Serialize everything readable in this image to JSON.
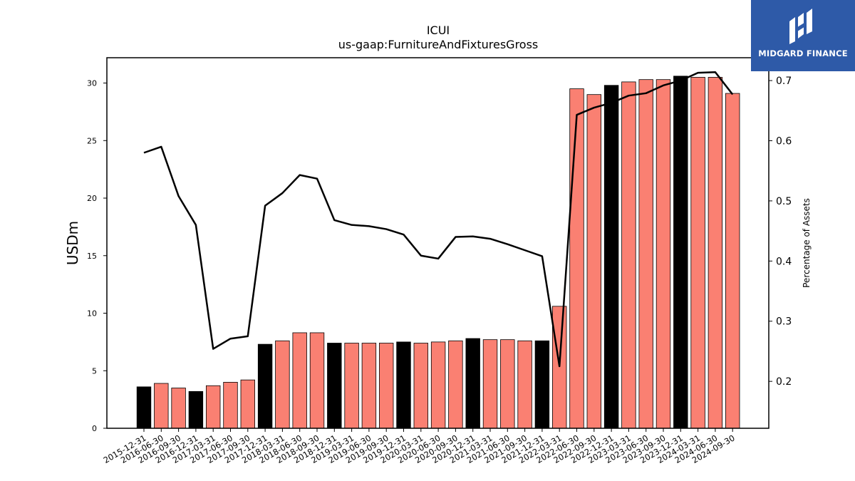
{
  "chart_data": {
    "type": "bar",
    "title": "ICUI",
    "subtitle": "us-gaap:FurnitureAndFixturesGross",
    "ylabel": "USDm",
    "y2label": "Percentage of Assets",
    "ylim": [
      0,
      32.2
    ],
    "y2lim": [
      0.122,
      0.738
    ],
    "yticks": [
      0,
      5,
      10,
      15,
      20,
      25,
      30
    ],
    "y2ticks": [
      0.2,
      0.3,
      0.4,
      0.5,
      0.6,
      0.7
    ],
    "categories": [
      "2015-12-31",
      "2016-06-30",
      "2016-09-30",
      "2016-12-31",
      "2017-03-31",
      "2017-06-30",
      "2017-09-30",
      "2017-12-31",
      "2018-03-31",
      "2018-06-30",
      "2018-09-30",
      "2018-12-31",
      "2019-03-31",
      "2019-06-30",
      "2019-09-30",
      "2019-12-31",
      "2020-03-31",
      "2020-06-30",
      "2020-09-30",
      "2020-12-31",
      "2021-03-31",
      "2021-06-30",
      "2021-09-30",
      "2021-12-31",
      "2022-03-31",
      "2022-06-30",
      "2022-09-30",
      "2022-12-31",
      "2023-03-31",
      "2023-06-30",
      "2023-09-30",
      "2023-12-31",
      "2024-03-31",
      "2024-06-30",
      "2024-09-30"
    ],
    "series": [
      {
        "kind": "bar",
        "values": [
          3.6,
          3.9,
          3.5,
          3.2,
          3.7,
          4.0,
          4.2,
          7.3,
          7.6,
          8.3,
          8.3,
          7.4,
          7.4,
          7.4,
          7.4,
          7.5,
          7.4,
          7.5,
          7.6,
          7.8,
          7.7,
          7.7,
          7.6,
          7.6,
          10.6,
          29.5,
          29.0,
          29.8,
          30.1,
          30.3,
          30.3,
          30.6,
          30.5,
          30.5,
          29.1
        ],
        "annual_flags": [
          1,
          0,
          0,
          1,
          0,
          0,
          0,
          1,
          0,
          0,
          0,
          1,
          0,
          0,
          0,
          1,
          0,
          0,
          0,
          1,
          0,
          0,
          0,
          1,
          0,
          0,
          0,
          1,
          0,
          0,
          0,
          1,
          0,
          0,
          0
        ]
      },
      {
        "kind": "line",
        "axis": "right",
        "values": [
          0.58,
          0.59,
          0.508,
          0.46,
          0.254,
          0.271,
          0.275,
          0.492,
          0.513,
          0.543,
          0.537,
          0.468,
          0.46,
          0.458,
          0.453,
          0.444,
          0.409,
          0.404,
          0.44,
          0.441,
          0.437,
          0.428,
          0.418,
          0.408,
          0.225,
          0.643,
          0.655,
          0.663,
          0.675,
          0.679,
          0.692,
          0.7,
          0.713,
          0.714,
          0.677
        ]
      }
    ],
    "colors": {
      "quarterly": "#fa8072",
      "annual": "#000000",
      "line": "#000000"
    },
    "grid": false,
    "legend": "none"
  },
  "logo": {
    "text": "MIDGARD FINANCE",
    "icon": "midgard-m-logo-icon"
  }
}
